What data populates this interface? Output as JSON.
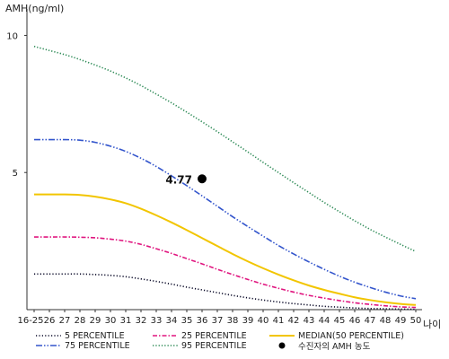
{
  "chart_data": {
    "type": "line",
    "ylabel": "AMH(ng/ml)",
    "xlabel": "나이",
    "y_ticks": [
      "10",
      "5"
    ],
    "ylim": [
      0,
      10.8
    ],
    "categories": [
      "16-25",
      "26",
      "27",
      "28",
      "29",
      "30",
      "31",
      "32",
      "33",
      "34",
      "35",
      "36",
      "37",
      "38",
      "39",
      "40",
      "41",
      "42",
      "43",
      "44",
      "45",
      "46",
      "47",
      "48",
      "49",
      "50"
    ],
    "series": [
      {
        "name": "5 PERCENTILE",
        "color": "#0a0a28",
        "dash": "1.2 2.2",
        "values": [
          1.3,
          1.3,
          1.3,
          1.3,
          1.28,
          1.25,
          1.2,
          1.12,
          1.03,
          0.93,
          0.82,
          0.72,
          0.62,
          0.52,
          0.43,
          0.35,
          0.28,
          0.22,
          0.17,
          0.12,
          0.09,
          0.06,
          0.04,
          0.03,
          0.02,
          0.01
        ]
      },
      {
        "name": "25 PERCENTILE",
        "color": "#e0157f",
        "dash": "5 2 1.5 2",
        "values": [
          2.65,
          2.65,
          2.65,
          2.64,
          2.62,
          2.57,
          2.5,
          2.38,
          2.22,
          2.05,
          1.86,
          1.67,
          1.47,
          1.28,
          1.1,
          0.93,
          0.78,
          0.64,
          0.52,
          0.42,
          0.33,
          0.25,
          0.19,
          0.14,
          0.1,
          0.08
        ]
      },
      {
        "name": "MEDIAN(50 PERCENTILE)",
        "color": "#f2c500",
        "dash": "",
        "values": [
          4.2,
          4.2,
          4.2,
          4.18,
          4.12,
          4.02,
          3.88,
          3.68,
          3.44,
          3.18,
          2.9,
          2.61,
          2.32,
          2.03,
          1.76,
          1.51,
          1.28,
          1.07,
          0.88,
          0.72,
          0.58,
          0.45,
          0.35,
          0.27,
          0.21,
          0.17
        ]
      },
      {
        "name": "75 PERCENTILE",
        "color": "#3355cc",
        "dash": "7 2 1.5 2 1.5 2",
        "values": [
          6.2,
          6.2,
          6.2,
          6.18,
          6.1,
          5.96,
          5.77,
          5.52,
          5.22,
          4.88,
          4.52,
          4.15,
          3.77,
          3.39,
          3.03,
          2.68,
          2.34,
          2.03,
          1.74,
          1.47,
          1.22,
          1.0,
          0.81,
          0.64,
          0.5,
          0.4
        ]
      },
      {
        "name": "95 PERCENTILE",
        "color": "#2e8b57",
        "dash": "1.3 2",
        "values": [
          9.6,
          9.45,
          9.3,
          9.12,
          8.92,
          8.7,
          8.45,
          8.17,
          7.86,
          7.54,
          7.2,
          6.85,
          6.49,
          6.12,
          5.75,
          5.37,
          5.0,
          4.63,
          4.27,
          3.91,
          3.57,
          3.24,
          2.93,
          2.65,
          2.38,
          2.12
        ]
      }
    ],
    "marker": {
      "name": "수진자의 AMH 농도",
      "x": "36",
      "y": 4.77,
      "label": "4.77"
    },
    "legend_placement": "bottom"
  }
}
